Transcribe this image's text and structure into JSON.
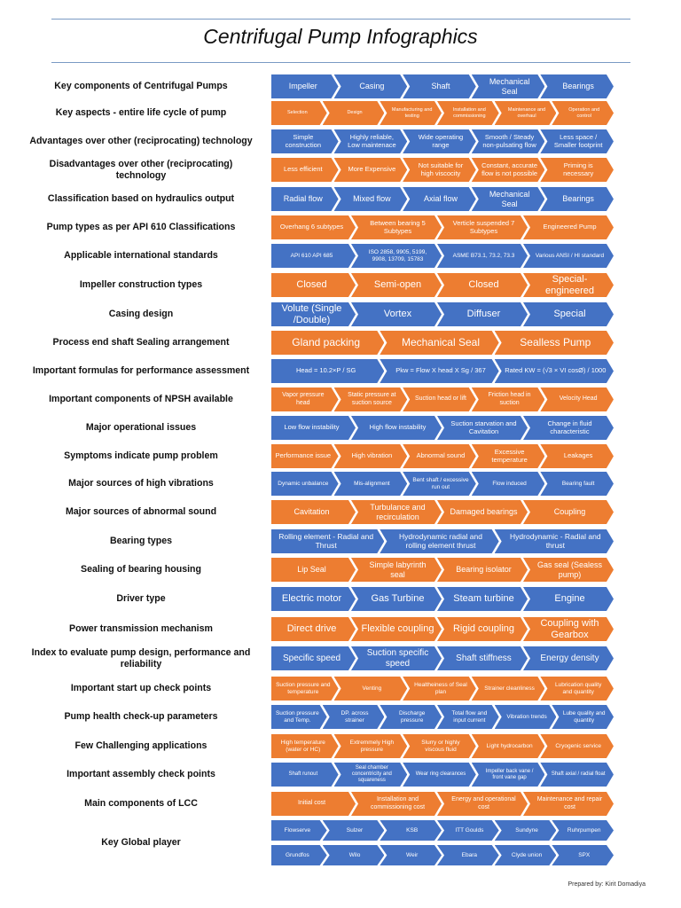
{
  "title": "Centrifugal Pump Infographics",
  "colors": {
    "blue": "#4472c4",
    "orange": "#ed7d31",
    "rule": "#7a9ac4"
  },
  "credit": "Prepared by: Kirit Domadiya",
  "rows": [
    {
      "label": "Key components of Centrifugal Pumps",
      "color": "blue",
      "fs": 9,
      "items": [
        "Impeller",
        "Casing",
        "Shaft",
        "Mechanical Seal",
        "Bearings"
      ]
    },
    {
      "label": "Key aspects - entire life cycle of pump",
      "color": "orange",
      "fs": 5.5,
      "items": [
        "Selection",
        "Design",
        "Manufacturing and testing",
        "Installation and commissioning",
        "Maintenance and overhaul",
        "Operation and control"
      ]
    },
    {
      "label": "Advantages over other (reciprocating) technology",
      "color": "blue",
      "fs": 7.5,
      "items": [
        "Simple construction",
        "Highly reliable, Low maintenace",
        "Wide operating range",
        "Smooth / Steady non-pulsating flow",
        "Less space / Smaller footprint"
      ]
    },
    {
      "label": "Disadvantages over other (reciprocating) technology",
      "color": "orange",
      "fs": 7.5,
      "items": [
        "Less efficient",
        "More Expensive",
        "Not suitable for high viscocity",
        "Constant, accurate flow is not possible",
        "Priming is necessary"
      ]
    },
    {
      "label": "Classification based on hydraulics output",
      "color": "blue",
      "fs": 9,
      "items": [
        "Radial flow",
        "Mixed flow",
        "Axial flow",
        "Mechanical Seal",
        "Bearings"
      ]
    },
    {
      "label": "Pump types as per API 610 Classifications",
      "color": "orange",
      "fs": 7.5,
      "items": [
        "Overhang 6 subtypes",
        "Between bearing 5 Subtypes",
        "Verticle suspended 7 Subtypes",
        "Engineered Pump"
      ]
    },
    {
      "label": "Applicable international standards",
      "color": "blue",
      "fs": 6.5,
      "items": [
        "API 610 API 685",
        "ISO 2858, 9905, 5199, 9908, 13709, 15783",
        "ASME B73.1, 73.2, 73.3",
        "Various ANSI / HI standard"
      ]
    },
    {
      "label": "Impeller construction types",
      "color": "orange",
      "fs": 11,
      "items": [
        "Closed",
        "Semi-open",
        "Closed",
        "Special-engineered"
      ]
    },
    {
      "label": "Casing design",
      "color": "blue",
      "fs": 11,
      "items": [
        "Volute (Single /Double)",
        "Vortex",
        "Diffuser",
        "Special"
      ]
    },
    {
      "label": "Process end shaft Sealing arrangement",
      "color": "orange",
      "fs": 12,
      "items": [
        "Gland packing",
        "Mechanical Seal",
        "Sealless Pump"
      ]
    },
    {
      "label": "Important formulas for performance assessment",
      "color": "blue",
      "fs": 7.5,
      "items": [
        "Head = 10.2×P / SG",
        "Pkw = Flow X head X Sg / 367",
        "Rated KW = (√3 × VI cosØ) / 1000"
      ]
    },
    {
      "label": "Important components of NPSH available",
      "color": "orange",
      "fs": 7,
      "items": [
        "Vapor pressure head",
        "Static pressure at suction source",
        "Suction head or lift",
        "Friction head in suction",
        "Velocity Head"
      ]
    },
    {
      "label": "Major operational issues",
      "color": "blue",
      "fs": 7.5,
      "items": [
        "Low flow instability",
        "High flow instability",
        "Suction starvation and Cavitation",
        "Change in fluid characteristic"
      ]
    },
    {
      "label": "Symptoms indicate pump problem",
      "color": "orange",
      "fs": 7.5,
      "items": [
        "Performance issue",
        "High vibration",
        "Abnormal sound",
        "Excessive temperature",
        "Leakages"
      ]
    },
    {
      "label": "Major sources of high vibrations",
      "color": "blue",
      "fs": 6.5,
      "items": [
        "Dynamic unbalance",
        "Mis-alignment",
        "Bent shaft / excessive run out",
        "Flow induced",
        "Bearing fault"
      ]
    },
    {
      "label": "Major sources of abnormal sound",
      "color": "orange",
      "fs": 9,
      "items": [
        "Cavitation",
        "Turbulance and recirculation",
        "Damaged bearings",
        "Coupling"
      ]
    },
    {
      "label": "Bearing types",
      "color": "blue",
      "fs": 8.5,
      "items": [
        "Rolling element - Radial and Thrust",
        "Hydrodynamic radial and rolling element thrust",
        "Hydrodynamic - Radial and thrust"
      ]
    },
    {
      "label": "Sealing of bearing housing",
      "color": "orange",
      "fs": 9,
      "items": [
        "Lip Seal",
        "Simple labyrinth seal",
        "Bearing isolator",
        "Gas seal (Sealess pump)"
      ]
    },
    {
      "label": "Driver type",
      "color": "blue",
      "fs": 11,
      "items": [
        "Electric motor",
        "Gas Turbine",
        "Steam turbine",
        "Engine"
      ]
    },
    {
      "label": "Power transmission mechanism",
      "color": "orange",
      "fs": 11,
      "items": [
        "Direct drive",
        "Flexible coupling",
        "Rigid coupling",
        "Coupling with Gearbox"
      ]
    },
    {
      "label": "Index to evaluate pump design, performance and reliability",
      "color": "blue",
      "fs": 10,
      "items": [
        "Specific speed",
        "Suction specific speed",
        "Shaft stiffness",
        "Energy density"
      ]
    },
    {
      "label": "Important start up check points",
      "color": "orange",
      "fs": 6.5,
      "items": [
        "Suction pressure and temperature",
        "Venting",
        "Healtheiness of Seal plan",
        "Strainer cleanliness",
        "Lubrication quality and quantity"
      ]
    },
    {
      "label": "Pump health check-up parameters",
      "color": "blue",
      "fs": 6.5,
      "items": [
        "Suction pressure and Temp.",
        "DP. across strainer",
        "Discharge pressure",
        "Total flow and input current",
        "Vibration trends",
        "Lube quality and quantity"
      ]
    },
    {
      "label": "Few Challenging applications",
      "color": "orange",
      "fs": 6.5,
      "items": [
        "High temperature (water or HC)",
        "Extremmely High pressure",
        "Slurry or highly viscous fluid",
        "Light hydrocarbon",
        "Cryogenic service"
      ]
    },
    {
      "label": "Important assembly check points",
      "color": "blue",
      "fs": 6,
      "items": [
        "Shaft runout",
        "Seal chamber concentricity and squareness",
        "Wear ring clearances",
        "Impeller back vane / front vane gap",
        "Shaft axial / radial float"
      ]
    },
    {
      "label": "Main components of LCC",
      "color": "orange",
      "fs": 7,
      "items": [
        "Initial cost",
        "Installation and commissioning cost",
        "Energy and operational cost",
        "Maintenance and repair cost"
      ]
    },
    {
      "label": "Key Global player",
      "color": "blue",
      "fs": 6.5,
      "items": [
        "Flowserve",
        "Sulzer",
        "KSB",
        "ITT Goulds",
        "Sundyne",
        "Ruhrpumpen"
      ],
      "items2": [
        "Grundfos",
        "Wilo",
        "Weir",
        "Ebara",
        "Clyde union",
        "SPX"
      ]
    }
  ]
}
